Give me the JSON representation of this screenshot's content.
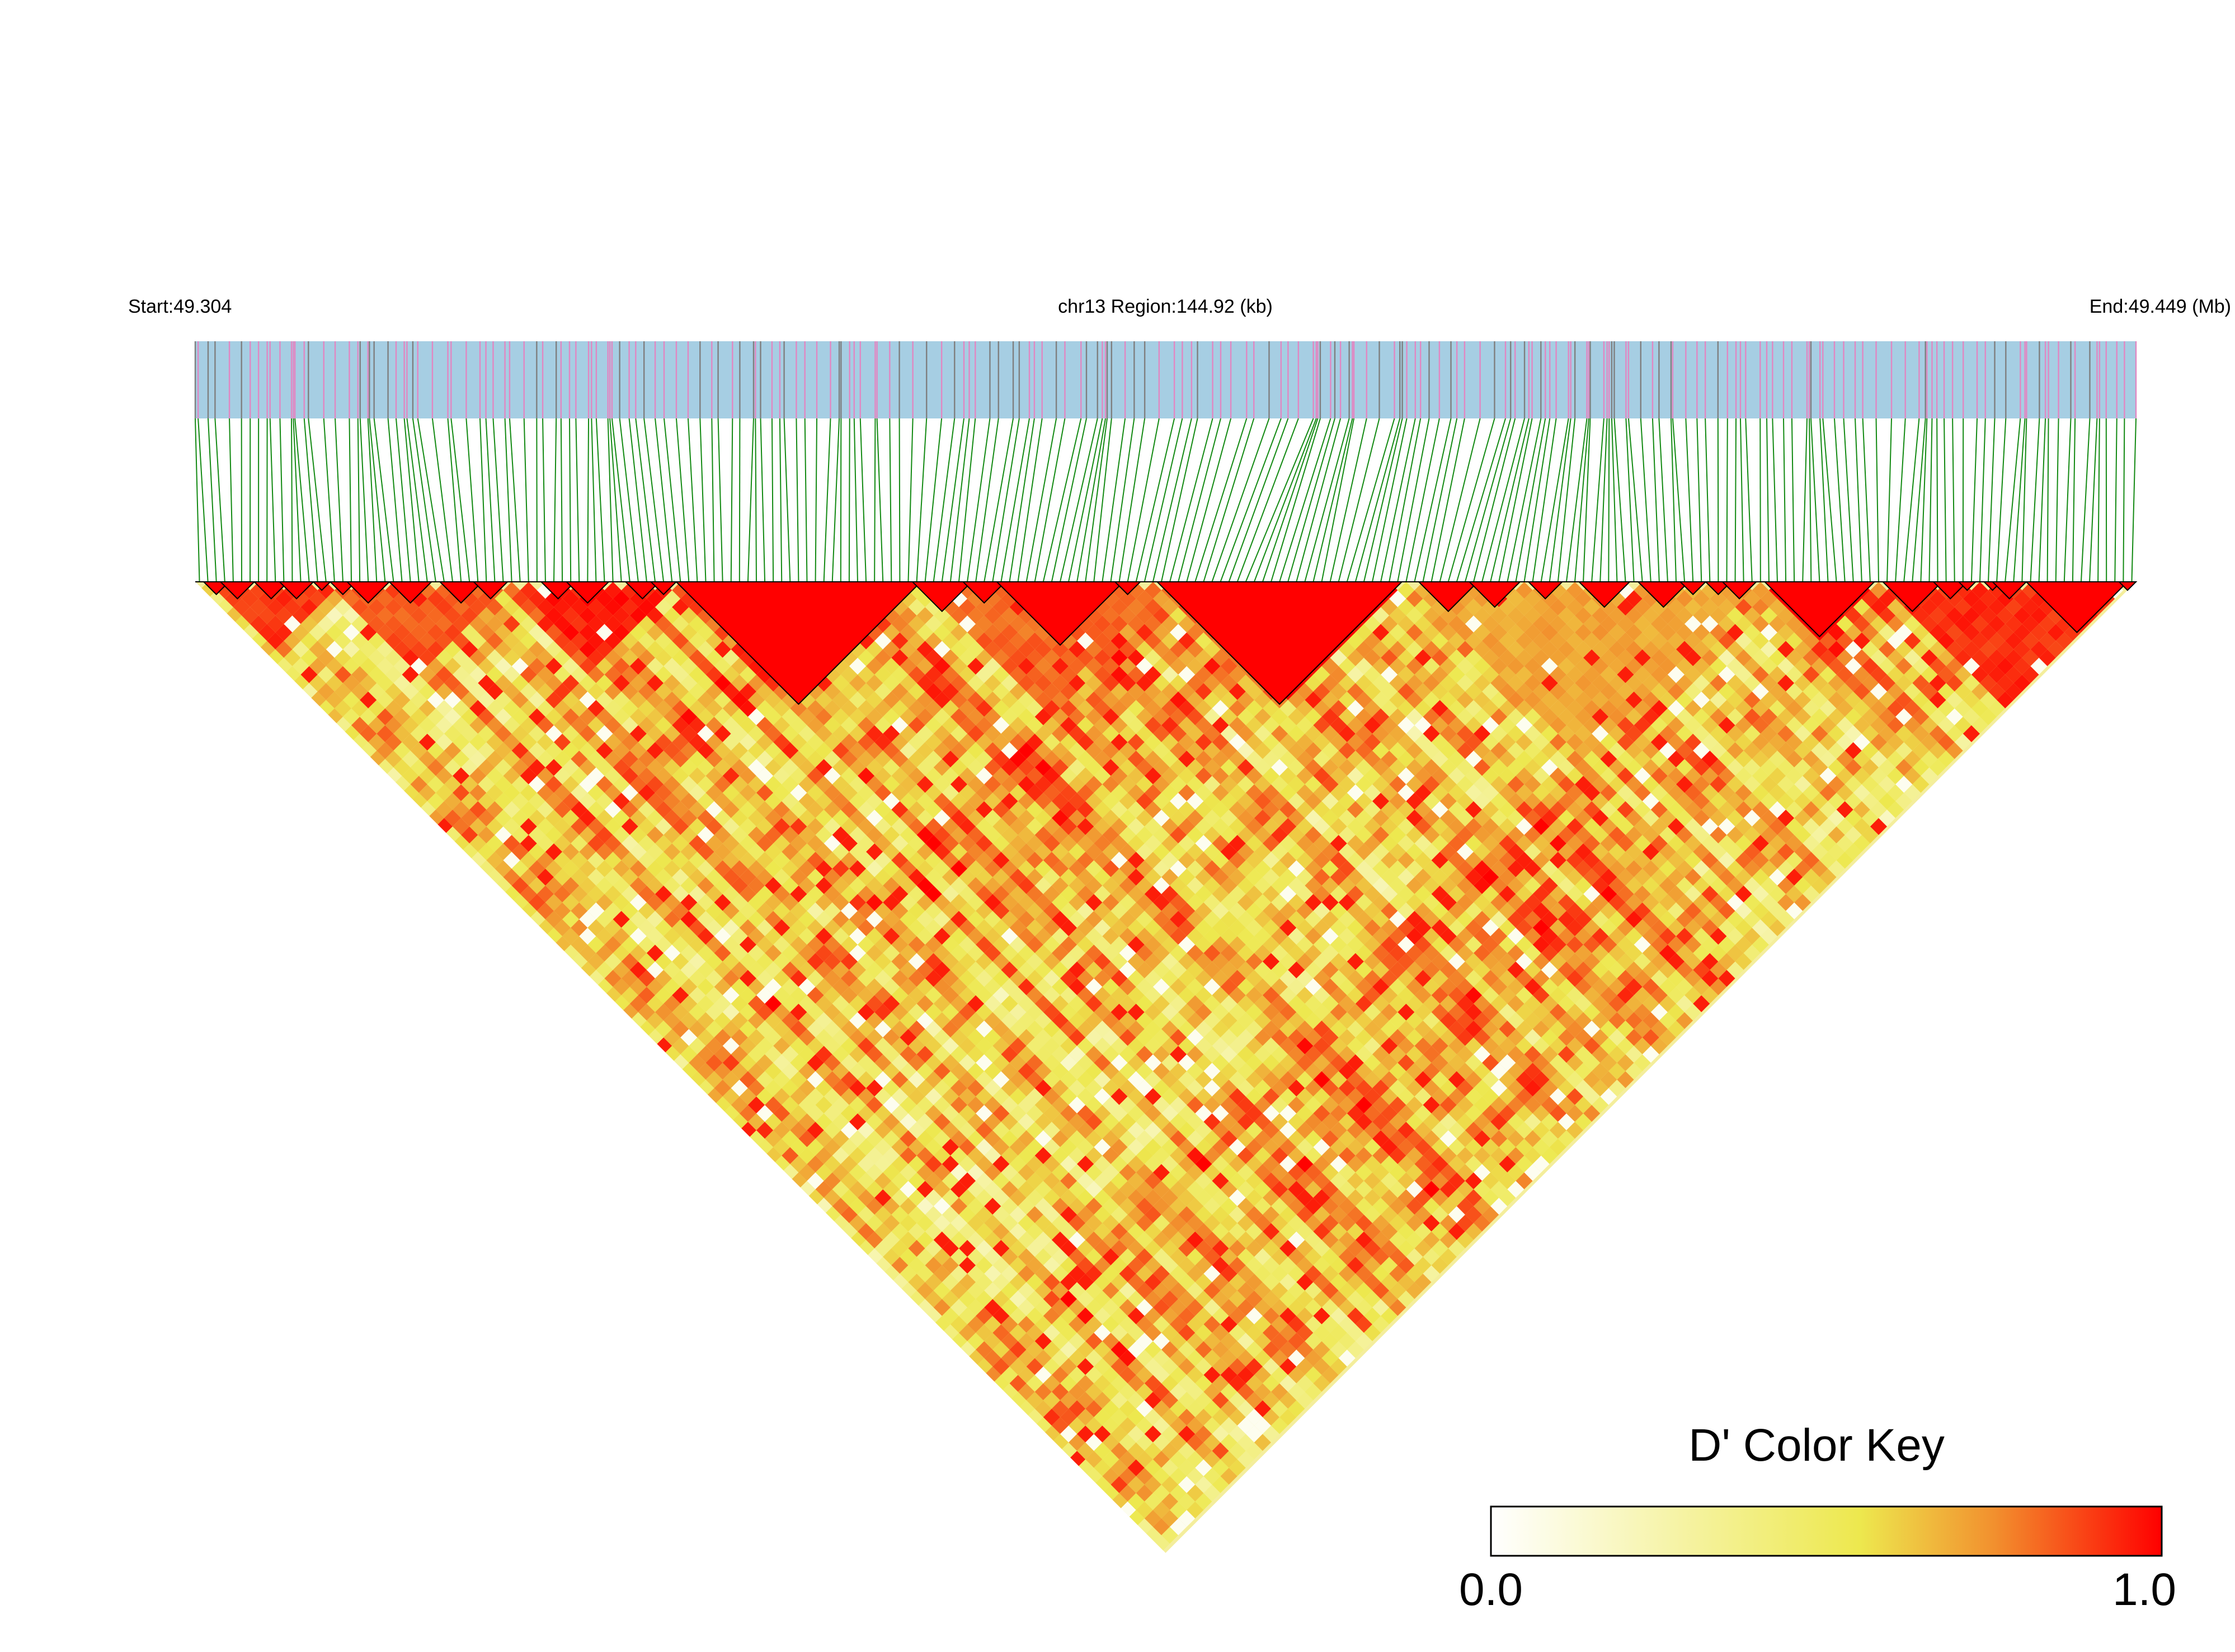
{
  "chart_data": {
    "type": "heatmap",
    "subtype": "linkage-disequilibrium triangle",
    "header": {
      "start_label": "Start:49.304",
      "region_label": "chr13 Region:144.92 (kb)",
      "end_label": "End:49.449 (Mb)"
    },
    "region": {
      "chromosome": "chr13",
      "start_mb": 49.304,
      "end_mb": 49.449,
      "length_kb": 144.92
    },
    "color_key": {
      "title": "D' Color Key",
      "min_label": "0.0",
      "max_label": "1.0",
      "range": [
        0.0,
        1.0
      ],
      "stops": [
        {
          "value": 0.0,
          "color": "#ffffff"
        },
        {
          "value": 0.55,
          "color": "#ede84e"
        },
        {
          "value": 0.75,
          "color": "#f2902e"
        },
        {
          "value": 1.0,
          "color": "#ff0000"
        }
      ]
    },
    "colors": {
      "track_background": "#a6cee3",
      "track_tick_pink": "#e187c2",
      "track_tick_gray": "#7f7f7f",
      "connector_line": "#138a13",
      "block_outline": "#000000"
    },
    "n_markers": 230,
    "ld_blocks": [
      {
        "from_mb": 49.3043,
        "to_mb": 49.306,
        "mean_dprime": 1.0
      },
      {
        "from_mb": 49.306,
        "to_mb": 49.3084,
        "mean_dprime": 1.0
      },
      {
        "from_mb": 49.3093,
        "to_mb": 49.3109,
        "mean_dprime": 1.0
      },
      {
        "from_mb": 49.3109,
        "to_mb": 49.3119,
        "mean_dprime": 1.0
      },
      {
        "from_mb": 49.3122,
        "to_mb": 49.3134,
        "mean_dprime": 1.0
      },
      {
        "from_mb": 49.314,
        "to_mb": 49.3157,
        "mean_dprime": 1.0
      },
      {
        "from_mb": 49.3157,
        "to_mb": 49.3171,
        "mean_dprime": 1.0
      },
      {
        "from_mb": 49.3174,
        "to_mb": 49.3201,
        "mean_dprime": 1.0
      },
      {
        "from_mb": 49.3212,
        "to_mb": 49.3244,
        "mean_dprime": 1.0
      },
      {
        "from_mb": 49.3249,
        "to_mb": 49.3265,
        "mean_dprime": 1.0
      },
      {
        "from_mb": 49.3305,
        "to_mb": 49.3324,
        "mean_dprime": 1.0
      },
      {
        "from_mb": 49.3324,
        "to_mb": 49.3348,
        "mean_dprime": 1.0
      },
      {
        "from_mb": 49.3357,
        "to_mb": 49.337,
        "mean_dprime": 1.0
      },
      {
        "from_mb": 49.3374,
        "to_mb": 49.3384,
        "mean_dprime": 1.0
      },
      {
        "from_mb": 49.3395,
        "to_mb": 49.359,
        "mean_dprime": 1.0
      },
      {
        "from_mb": 49.3593,
        "to_mb": 49.3634,
        "mean_dprime": 1.0
      },
      {
        "from_mb": 49.3634,
        "to_mb": 49.3666,
        "mean_dprime": 1.0
      },
      {
        "from_mb": 49.3666,
        "to_mb": 49.3752,
        "mean_dprime": 1.0
      },
      {
        "from_mb": 49.3752,
        "to_mb": 49.3774,
        "mean_dprime": 1.0
      },
      {
        "from_mb": 49.3793,
        "to_mb": 49.3966,
        "mean_dprime": 1.0
      },
      {
        "from_mb": 49.3985,
        "to_mb": 49.403,
        "mean_dprime": 1.0
      },
      {
        "from_mb": 49.403,
        "to_mb": 49.4049,
        "mean_dprime": 1.0
      },
      {
        "from_mb": 49.4058,
        "to_mb": 49.4078,
        "mean_dprime": 1.0
      },
      {
        "from_mb": 49.4087,
        "to_mb": 49.4105,
        "mean_dprime": 1.0
      },
      {
        "from_mb": 49.4117,
        "to_mb": 49.4149,
        "mean_dprime": 1.0
      },
      {
        "from_mb": 49.4149,
        "to_mb": 49.4164,
        "mean_dprime": 1.0
      },
      {
        "from_mb": 49.4173,
        "to_mb": 49.4188,
        "mean_dprime": 1.0
      },
      {
        "from_mb": 49.4188,
        "to_mb": 49.4199,
        "mean_dprime": 1.0
      },
      {
        "from_mb": 49.4215,
        "to_mb": 49.4293,
        "mean_dprime": 1.0
      },
      {
        "from_mb": 49.4317,
        "to_mb": 49.4345,
        "mean_dprime": 1.0
      },
      {
        "from_mb": 49.4345,
        "to_mb": 49.4363,
        "mean_dprime": 1.0
      },
      {
        "from_mb": 49.4363,
        "to_mb": 49.4375,
        "mean_dprime": 1.0
      },
      {
        "from_mb": 49.4385,
        "to_mb": 49.44,
        "mean_dprime": 1.0
      },
      {
        "from_mb": 49.44,
        "to_mb": 49.4413,
        "mean_dprime": 1.0
      },
      {
        "from_mb": 49.4418,
        "to_mb": 49.4486,
        "mean_dprime": 1.0
      },
      {
        "from_mb": 49.4486,
        "to_mb": 49.449,
        "mean_dprime": 1.0
      }
    ],
    "dprime_regions": [
      {
        "from_mb": 49.3043,
        "to_mb": 49.314,
        "level": 0.8
      },
      {
        "from_mb": 49.314,
        "to_mb": 49.327,
        "level": 0.75
      },
      {
        "from_mb": 49.327,
        "to_mb": 49.339,
        "level": 0.85
      },
      {
        "from_mb": 49.3395,
        "to_mb": 49.359,
        "level": 1.0
      },
      {
        "from_mb": 49.359,
        "to_mb": 49.379,
        "level": 0.72
      },
      {
        "from_mb": 49.379,
        "to_mb": 49.397,
        "level": 0.9
      },
      {
        "from_mb": 49.397,
        "to_mb": 49.42,
        "level": 0.6
      },
      {
        "from_mb": 49.42,
        "to_mb": 49.43,
        "level": 0.95
      },
      {
        "from_mb": 49.43,
        "to_mb": 49.449,
        "level": 0.82
      }
    ],
    "background_dprime": 0.38,
    "xlim": [
      49.304,
      49.449
    ],
    "grid": false,
    "legend": "bottom-right"
  }
}
